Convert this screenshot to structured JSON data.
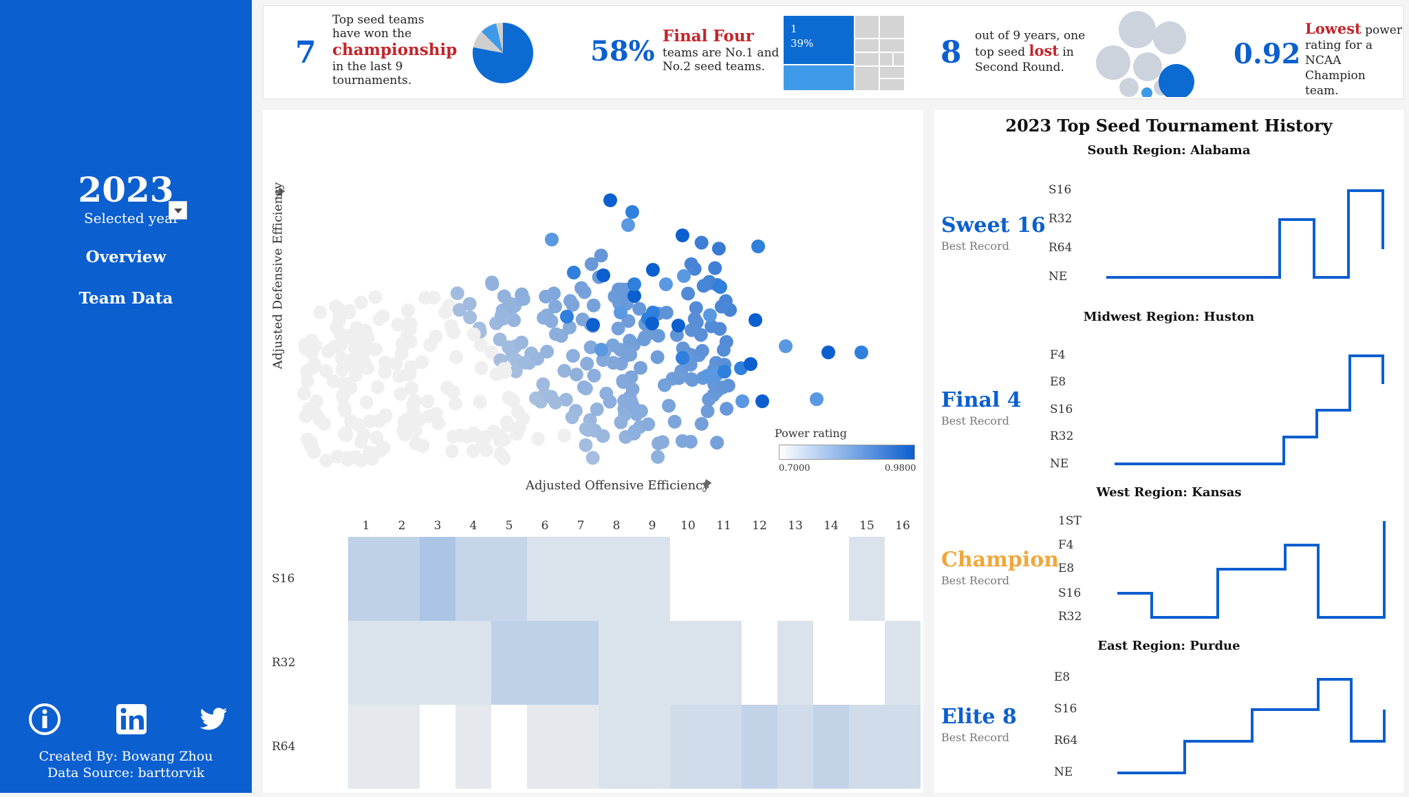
{
  "sidebar": {
    "year": "2023",
    "year_label": "Selected year",
    "nav": [
      {
        "label": "Overview"
      },
      {
        "label": "Team Data"
      }
    ],
    "icons": [
      "info-icon",
      "linkedin-icon",
      "twitter-icon"
    ],
    "created_by": "Created By: Bowang Zhou",
    "data_source": "Data Source: barttorvik"
  },
  "kpis": {
    "k1": {
      "value": "7",
      "line1": "Top seed teams",
      "line2": "have won the",
      "highlight": "championship",
      "line3": "in the last 9",
      "line4": "tournaments.",
      "pie_fraction": 0.78
    },
    "k2": {
      "value": "58%",
      "highlight": "Final Four",
      "line1": "teams are No.1 and",
      "line2": "No.2 seed teams.",
      "treemap_label": "1",
      "treemap_pct": "39%"
    },
    "k3": {
      "value": "8",
      "line1": "out of 9 years, one",
      "line2a": "top seed ",
      "highlight": "lost",
      "line2b": " in",
      "line3": "Second Round."
    },
    "k4": {
      "value": "0.92",
      "highlight": "Lowest",
      "line1a": " power",
      "line2": "rating for a",
      "line3": "NCAA Champion",
      "line4": "team."
    }
  },
  "scatter": {
    "y_axis_title": "Adjusted Defensive Efficiency",
    "x_axis_title": "Adjusted Offensive Efficiency",
    "legend_title": "Power rating",
    "legend_min": "0.7000",
    "legend_max": "0.9800",
    "colors": {
      "low": "#e6e6e6",
      "high": "#0b5fcf"
    }
  },
  "heatmap": {
    "columns": [
      "1",
      "2",
      "3",
      "4",
      "5",
      "6",
      "7",
      "8",
      "9",
      "10",
      "11",
      "12",
      "13",
      "14",
      "15",
      "16"
    ],
    "rows": [
      "S16",
      "R32",
      "R64"
    ],
    "values": [
      [
        0.45,
        0.45,
        0.62,
        0.38,
        0.38,
        0.2,
        0.2,
        0.2,
        0.2,
        0,
        0,
        0,
        0,
        0,
        0.2,
        0
      ],
      [
        0.2,
        0.2,
        0.2,
        0.2,
        0.45,
        0.45,
        0.45,
        0.2,
        0.2,
        0.2,
        0.2,
        0,
        0.2,
        0,
        0,
        0.2
      ],
      [
        0.1,
        0.1,
        0,
        0.1,
        0,
        0.1,
        0.1,
        0.2,
        0.2,
        0.28,
        0.28,
        0.42,
        0.28,
        0.42,
        0.28,
        0.28
      ]
    ]
  },
  "history": {
    "title": "2023 Top Seed Tournament History",
    "regions": [
      {
        "title": "South Region: Alabama",
        "best": "Sweet 16",
        "best_color": "#0b5fcf",
        "sub": "Best Record",
        "levels": [
          "S16",
          "R32",
          "R64",
          "NE"
        ]
      },
      {
        "title": "Midwest Region: Huston",
        "best": "Final 4",
        "best_color": "#0b5fcf",
        "sub": "Best Record",
        "levels": [
          "F4",
          "E8",
          "S16",
          "R32",
          "NE"
        ]
      },
      {
        "title": "West Region: Kansas",
        "best": "Champion",
        "best_color": "#f0a73a",
        "sub": "Best Record",
        "levels": [
          "1ST",
          "F4",
          "E8",
          "S16",
          "R32"
        ]
      },
      {
        "title": "East Region: Purdue",
        "best": "Elite 8",
        "best_color": "#0b5fcf",
        "sub": "Best Record",
        "levels": [
          "E8",
          "S16",
          "R64",
          "NE"
        ]
      }
    ]
  }
}
